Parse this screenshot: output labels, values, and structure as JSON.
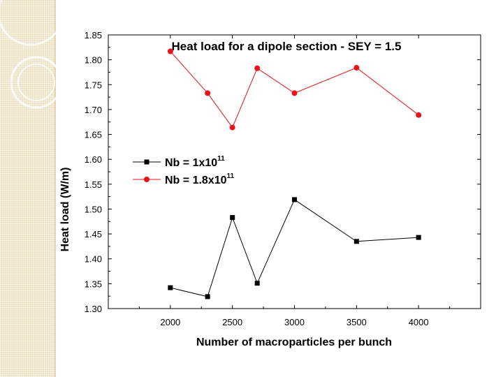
{
  "chart_data": {
    "type": "line",
    "title": "Heat load for a dipole section - SEY = 1.5",
    "xlabel": "Number of macroparticles per bunch",
    "ylabel": "Heat load (W/m)",
    "xlim": [
      1500,
      4500
    ],
    "ylim": [
      1.3,
      1.85
    ],
    "x_ticks": [
      2000,
      2500,
      3000,
      3500,
      4000
    ],
    "x_tick_labels": [
      "2000",
      "2500",
      "3000",
      "3500",
      "4000"
    ],
    "y_ticks": [
      1.3,
      1.35,
      1.4,
      1.45,
      1.5,
      1.55,
      1.6,
      1.65,
      1.7,
      1.75,
      1.8,
      1.85
    ],
    "y_tick_labels": [
      "1.30",
      "1.35",
      "1.40",
      "1.45",
      "1.50",
      "1.55",
      "1.60",
      "1.65",
      "1.70",
      "1.75",
      "1.80",
      "1.85"
    ],
    "legend_position": "center-left",
    "series": [
      {
        "name": "Nb = 1x10^11",
        "label_base": "Nb = 1x10",
        "label_exp": "11",
        "color": "#000000",
        "marker": "square",
        "x": [
          2000,
          2300,
          2500,
          2700,
          3000,
          3500,
          4000
        ],
        "values": [
          1.342,
          1.324,
          1.483,
          1.351,
          1.519,
          1.435,
          1.443
        ]
      },
      {
        "name": "Nb = 1.8x10^11",
        "label_base": "Nb = 1.8x10",
        "label_exp": "11",
        "color": "#e8121a",
        "marker": "circle",
        "x": [
          2000,
          2300,
          2500,
          2700,
          3000,
          3500,
          4000
        ],
        "values": [
          1.817,
          1.733,
          1.664,
          1.783,
          1.733,
          1.784,
          1.689
        ]
      }
    ]
  }
}
